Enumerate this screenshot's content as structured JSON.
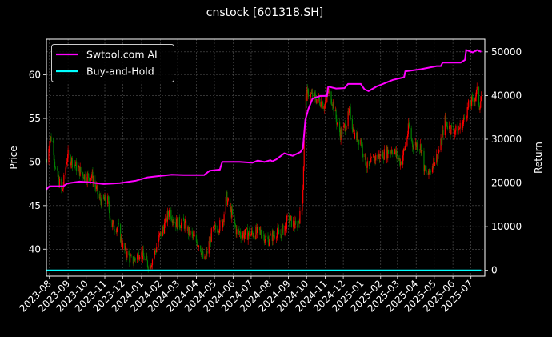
{
  "chart_data": {
    "type": "line",
    "title": "cnstock [601318.SH]",
    "ylabel": "Price",
    "y2label": "Return",
    "ylim": [
      36.9,
      64.1
    ],
    "y2lim": [
      -1340,
      52900
    ],
    "xlim": [
      "2023-07-27",
      "2025-07-24"
    ],
    "grid": true,
    "legend_position": "top-left",
    "x_ticks": [
      "2023-08",
      "2023-09",
      "2023-10",
      "2023-11",
      "2023-12",
      "2024-01",
      "2024-02",
      "2024-03",
      "2024-04",
      "2024-05",
      "2024-06",
      "2024-07",
      "2024-08",
      "2024-09",
      "2024-10",
      "2024-11",
      "2024-12",
      "2025-01",
      "2025-02",
      "2025-03",
      "2025-04",
      "2025-05",
      "2025-06",
      "2025-07"
    ],
    "y_ticks": [
      40,
      45,
      50,
      55,
      60
    ],
    "y2_ticks": [
      0,
      10000,
      20000,
      30000,
      40000,
      50000
    ],
    "price": {
      "kind": "candlestick",
      "colors": {
        "up": "#ff0000",
        "down": "#008000"
      },
      "close": [
        [
          "2023-07-28",
          50
        ],
        [
          "2023-08-01",
          52.5
        ],
        [
          "2023-08-06",
          53
        ],
        [
          "2023-08-11",
          49
        ],
        [
          "2023-08-14",
          48.5
        ],
        [
          "2023-08-22",
          46.5
        ],
        [
          "2023-08-31",
          50.8
        ],
        [
          "2023-09-14",
          49.5
        ],
        [
          "2023-09-20",
          49
        ],
        [
          "2023-09-30",
          48.3
        ],
        [
          "2023-10-10",
          48.5
        ],
        [
          "2023-10-24",
          45.6
        ],
        [
          "2023-11-06",
          45.5
        ],
        [
          "2023-11-12",
          42.8
        ],
        [
          "2023-11-23",
          42.5
        ],
        [
          "2023-12-02",
          40
        ],
        [
          "2023-12-09",
          39.4
        ],
        [
          "2023-12-16",
          38.5
        ],
        [
          "2023-12-29",
          39.7
        ],
        [
          "2024-01-05",
          39
        ],
        [
          "2024-01-14",
          38
        ],
        [
          "2024-01-25",
          40
        ],
        [
          "2024-01-31",
          41.5
        ],
        [
          "2024-02-07",
          42.5
        ],
        [
          "2024-02-16",
          44.4
        ],
        [
          "2024-02-27",
          43
        ],
        [
          "2024-03-11",
          43
        ],
        [
          "2024-03-19",
          42
        ],
        [
          "2024-03-31",
          41
        ],
        [
          "2024-04-07",
          40.5
        ],
        [
          "2024-04-14",
          38.3
        ],
        [
          "2024-04-20",
          40
        ],
        [
          "2024-04-27",
          42
        ],
        [
          "2024-05-06",
          42.5
        ],
        [
          "2024-05-14",
          43
        ],
        [
          "2024-05-21",
          45.9
        ],
        [
          "2024-05-30",
          44
        ],
        [
          "2024-06-07",
          42
        ],
        [
          "2024-06-19",
          41.7
        ],
        [
          "2024-07-03",
          41.8
        ],
        [
          "2024-07-16",
          42
        ],
        [
          "2024-07-29",
          41
        ],
        [
          "2024-08-12",
          42
        ],
        [
          "2024-08-18",
          41.6
        ],
        [
          "2024-09-01",
          43.5
        ],
        [
          "2024-09-14",
          42.5
        ],
        [
          "2024-09-23",
          44.5
        ],
        [
          "2024-09-25",
          47.2
        ],
        [
          "2024-09-29",
          57.3
        ],
        [
          "2024-10-04",
          58
        ],
        [
          "2024-10-11",
          57.5
        ],
        [
          "2024-10-24",
          57
        ],
        [
          "2024-10-31",
          56.5
        ],
        [
          "2024-11-06",
          58
        ],
        [
          "2024-11-13",
          57
        ],
        [
          "2024-11-19",
          55
        ],
        [
          "2024-11-26",
          53.2
        ],
        [
          "2024-12-03",
          54
        ],
        [
          "2024-12-12",
          55.7
        ],
        [
          "2024-12-20",
          53
        ],
        [
          "2024-12-30",
          52.5
        ],
        [
          "2025-01-05",
          50.5
        ],
        [
          "2025-01-12",
          49
        ],
        [
          "2025-01-19",
          50.5
        ],
        [
          "2025-01-25",
          50.5
        ],
        [
          "2025-02-08",
          51
        ],
        [
          "2025-02-21",
          51.5
        ],
        [
          "2025-03-06",
          50
        ],
        [
          "2025-03-13",
          51.5
        ],
        [
          "2025-03-20",
          54.1
        ],
        [
          "2025-03-26",
          52
        ],
        [
          "2025-04-02",
          52
        ],
        [
          "2025-04-09",
          51.7
        ],
        [
          "2025-04-15",
          49
        ],
        [
          "2025-04-22",
          48.5
        ],
        [
          "2025-04-29",
          50
        ],
        [
          "2025-05-05",
          50.5
        ],
        [
          "2025-05-12",
          52
        ],
        [
          "2025-05-19",
          54.8
        ],
        [
          "2025-05-25",
          54
        ],
        [
          "2025-06-08",
          53.5
        ],
        [
          "2025-06-18",
          54.5
        ],
        [
          "2025-06-28",
          56.6
        ],
        [
          "2025-07-04",
          57
        ],
        [
          "2025-07-11",
          58
        ],
        [
          "2025-07-15",
          56.5
        ],
        [
          "2025-07-18",
          57.5
        ]
      ]
    },
    "series": [
      {
        "name": "Swtool.com AI",
        "axis": "right",
        "color": "#ff00ff",
        "points": [
          [
            "2023-07-27",
            18500
          ],
          [
            "2023-08-01",
            19250
          ],
          [
            "2023-08-24",
            19250
          ],
          [
            "2023-08-31",
            19900
          ],
          [
            "2023-09-20",
            20300
          ],
          [
            "2023-10-10",
            20100
          ],
          [
            "2023-10-30",
            19750
          ],
          [
            "2023-11-26",
            19950
          ],
          [
            "2023-12-22",
            20480
          ],
          [
            "2024-01-11",
            21270
          ],
          [
            "2024-01-31",
            21580
          ],
          [
            "2024-02-20",
            21890
          ],
          [
            "2024-03-11",
            21800
          ],
          [
            "2024-04-14",
            21800
          ],
          [
            "2024-04-23",
            22800
          ],
          [
            "2024-05-10",
            23050
          ],
          [
            "2024-05-14",
            24830
          ],
          [
            "2024-06-12",
            24800
          ],
          [
            "2024-07-03",
            24600
          ],
          [
            "2024-07-12",
            25100
          ],
          [
            "2024-07-23",
            24800
          ],
          [
            "2024-08-02",
            25200
          ],
          [
            "2024-08-05",
            24940
          ],
          [
            "2024-08-12",
            25400
          ],
          [
            "2024-08-25",
            26770
          ],
          [
            "2024-09-08",
            26200
          ],
          [
            "2024-09-21",
            27080
          ],
          [
            "2024-09-25",
            28000
          ],
          [
            "2024-09-29",
            34420
          ],
          [
            "2024-10-04",
            36860
          ],
          [
            "2024-10-11",
            39300
          ],
          [
            "2024-10-24",
            39900
          ],
          [
            "2024-11-04",
            39900
          ],
          [
            "2024-11-06",
            42050
          ],
          [
            "2024-11-19",
            41620
          ],
          [
            "2024-12-03",
            41700
          ],
          [
            "2024-12-09",
            42660
          ],
          [
            "2024-12-30",
            42660
          ],
          [
            "2025-01-05",
            41440
          ],
          [
            "2025-01-12",
            41000
          ],
          [
            "2025-01-25",
            42050
          ],
          [
            "2025-02-21",
            43580
          ],
          [
            "2025-03-12",
            44190
          ],
          [
            "2025-03-14",
            45540
          ],
          [
            "2025-04-09",
            46020
          ],
          [
            "2025-05-05",
            46750
          ],
          [
            "2025-05-12",
            46750
          ],
          [
            "2025-05-15",
            47550
          ],
          [
            "2025-06-14",
            47550
          ],
          [
            "2025-06-21",
            48160
          ],
          [
            "2025-06-23",
            50420
          ],
          [
            "2025-07-04",
            49880
          ],
          [
            "2025-07-11",
            50400
          ],
          [
            "2025-07-18",
            50000
          ]
        ]
      },
      {
        "name": "Buy-and-Hold",
        "axis": "right",
        "color": "#00ffff",
        "points": [
          [
            "2023-07-27",
            0
          ],
          [
            "2025-07-18",
            0
          ]
        ]
      }
    ]
  }
}
